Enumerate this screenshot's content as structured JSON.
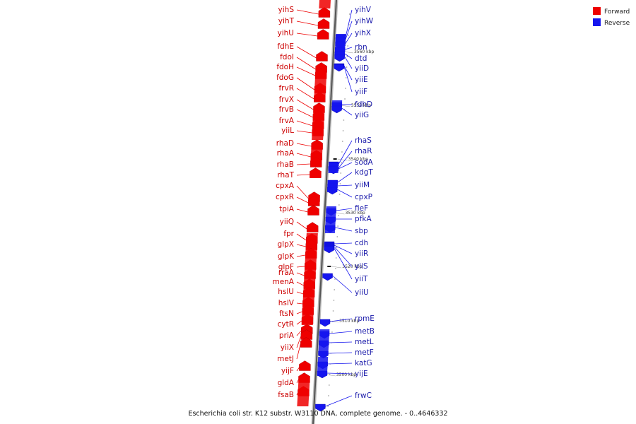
{
  "caption": "Escherichia coli str. K12 substr. W3110 DNA, complete genome. - 0..4646332",
  "legend": [
    {
      "label": "Forward",
      "color": "#ee0000"
    },
    {
      "label": "Reverse",
      "color": "#1515ee"
    }
  ],
  "colors": {
    "forward": "#ee0000",
    "reverse": "#1515ee",
    "forward_label": "#cc0000",
    "reverse_label": "#1a1aaa",
    "axis": "#555555"
  },
  "ticks": [
    "3560 kbp",
    "3550 kbp",
    "3540 kbp",
    "3530 kbp",
    "3520 kbp",
    "3510 kbp",
    "3500 kbp"
  ],
  "forward_genes": [
    "yihS",
    "yihT",
    "yihU",
    "fdhE",
    "fdoI",
    "fdoH",
    "fdoG",
    "frvR",
    "frvX",
    "frvB",
    "frvA",
    "yiiL",
    "rhaD",
    "rhaA",
    "rhaB",
    "rhaT",
    "cpxA",
    "cpxR",
    "tpiA",
    "yiiQ",
    "fpr",
    "glpX",
    "glpK",
    "glpF",
    "rraA",
    "menA",
    "hslU",
    "hslV",
    "ftsN",
    "cytR",
    "priA",
    "yiiX",
    "metJ",
    "yijF",
    "gldA",
    "fsaB"
  ],
  "reverse_genes": [
    "yihV",
    "yihW",
    "yihX",
    "rbn",
    "dtd",
    "yiiD",
    "yiiE",
    "yiiF",
    "fdhD",
    "yiiG",
    "rhaS",
    "rhaR",
    "sodA",
    "kdgT",
    "yiiM",
    "cpxP",
    "fieF",
    "pfkA",
    "sbp",
    "cdh",
    "yiiR",
    "yiiS",
    "yiiT",
    "yiiU",
    "rpmE",
    "metB",
    "metL",
    "metF",
    "katG",
    "yijE",
    "frwC"
  ]
}
